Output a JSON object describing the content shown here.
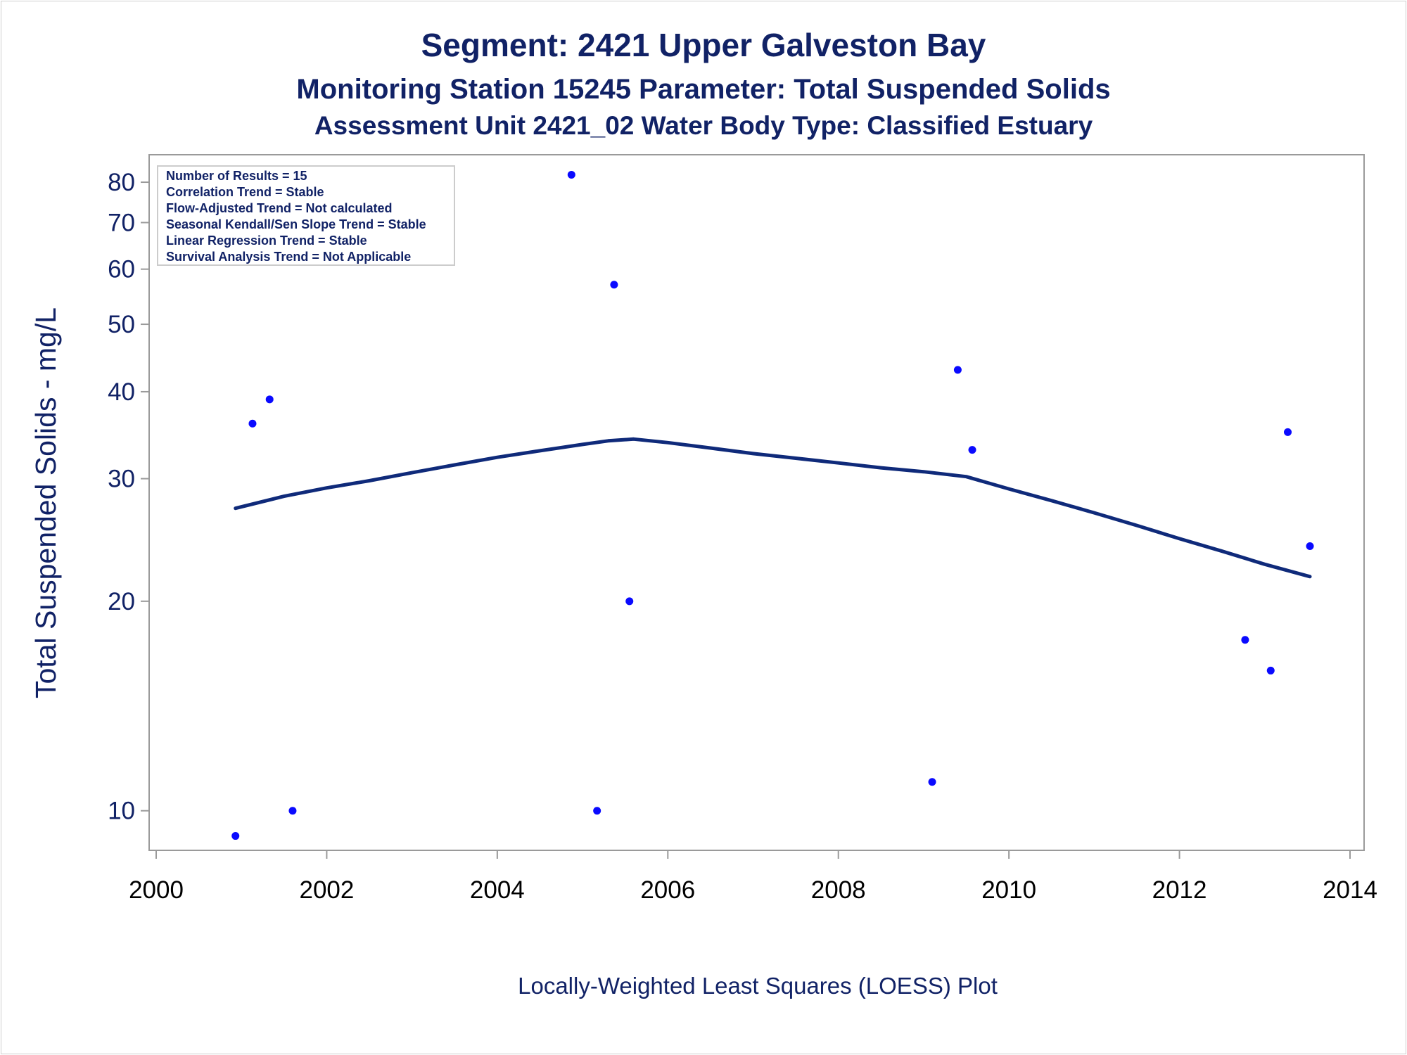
{
  "chart_data": {
    "type": "scatter",
    "title": "Segment: 2421  Upper Galveston Bay",
    "subtitle": "Monitoring Station 15245 Parameter: Total Suspended Solids",
    "subtitle2": "Assessment Unit 2421_02   Water Body Type: Classified Estuary",
    "ylabel": "Total Suspended Solids - mg/L",
    "xlabel": "",
    "footnote": "Locally-Weighted Least Squares (LOESS) Plot",
    "yscale": "log",
    "xlim": [
      2000,
      2014
    ],
    "ylim": [
      9,
      85
    ],
    "xticks": [
      "2000",
      "2002",
      "2004",
      "2006",
      "2008",
      "2010",
      "2012",
      "2014"
    ],
    "xtick_values": [
      2000,
      2002,
      2004,
      2006,
      2008,
      2010,
      2012,
      2014
    ],
    "yticks": [
      "10",
      "20",
      "30",
      "40",
      "50",
      "60",
      "70",
      "80"
    ],
    "ytick_values": [
      10,
      20,
      30,
      40,
      50,
      60,
      70,
      80
    ],
    "stats_box": [
      "Number of Results = 15",
      "Correlation Trend = Stable",
      "Flow-Adjusted Trend = Not calculated",
      "Seasonal Kendall/Sen Slope Trend = Stable",
      "Linear Regression Trend = Stable",
      "Survival Analysis Trend = Not Applicable"
    ],
    "series": [
      {
        "kind": "points",
        "color": "#0a0aff",
        "x": [
          2000.93,
          2001.13,
          2001.33,
          2001.6,
          2004.87,
          2005.17,
          2005.37,
          2005.55,
          2009.1,
          2009.4,
          2009.57,
          2012.77,
          2013.07,
          2013.27,
          2013.53
        ],
        "y": [
          9.2,
          36,
          39,
          10,
          82,
          10,
          57,
          20,
          11,
          43,
          33,
          17.6,
          15.9,
          35,
          24
        ]
      },
      {
        "kind": "line",
        "color": "#0f2a7a",
        "x": [
          2000.93,
          2001.5,
          2002,
          2002.5,
          2003,
          2003.5,
          2004,
          2004.5,
          2005,
          2005.3,
          2005.6,
          2006,
          2006.5,
          2007,
          2007.5,
          2008,
          2008.5,
          2009,
          2009.5,
          2010,
          2010.5,
          2011,
          2011.5,
          2012,
          2012.5,
          2013,
          2013.53
        ],
        "y": [
          27.2,
          28.3,
          29.1,
          29.8,
          30.6,
          31.4,
          32.2,
          32.9,
          33.6,
          34,
          34.2,
          33.8,
          33.2,
          32.6,
          32.1,
          31.6,
          31.1,
          30.7,
          30.2,
          29,
          27.9,
          26.8,
          25.7,
          24.6,
          23.6,
          22.6,
          21.7
        ]
      }
    ]
  }
}
